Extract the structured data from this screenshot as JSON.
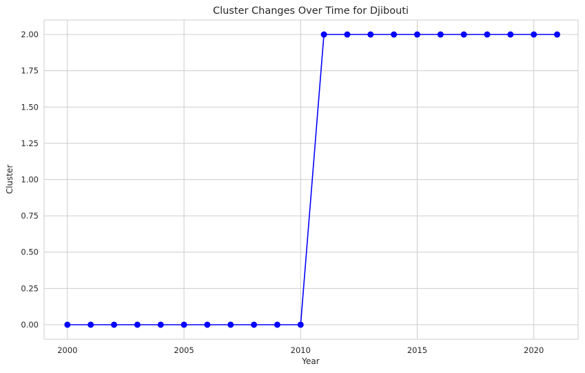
{
  "chart_data": {
    "type": "line",
    "title": "Cluster Changes Over Time for Djibouti",
    "xlabel": "Year",
    "ylabel": "Cluster",
    "xlim": [
      1999.0,
      2021.9
    ],
    "ylim": [
      -0.1,
      2.1
    ],
    "x_ticks": [
      2000,
      2005,
      2010,
      2015,
      2020
    ],
    "y_ticks": [
      "0.00",
      "0.25",
      "0.50",
      "0.75",
      "1.00",
      "1.25",
      "1.50",
      "1.75",
      "2.00"
    ],
    "grid": true,
    "legend": "none",
    "series": [
      {
        "color": "#0000ff",
        "marker": "circle",
        "x": [
          2000,
          2001,
          2002,
          2003,
          2004,
          2005,
          2006,
          2007,
          2008,
          2009,
          2010,
          2011,
          2012,
          2013,
          2014,
          2015,
          2016,
          2017,
          2018,
          2019,
          2020,
          2021
        ],
        "y": [
          0,
          0,
          0,
          0,
          0,
          0,
          0,
          0,
          0,
          0,
          0,
          2,
          2,
          2,
          2,
          2,
          2,
          2,
          2,
          2,
          2,
          2
        ]
      }
    ]
  }
}
